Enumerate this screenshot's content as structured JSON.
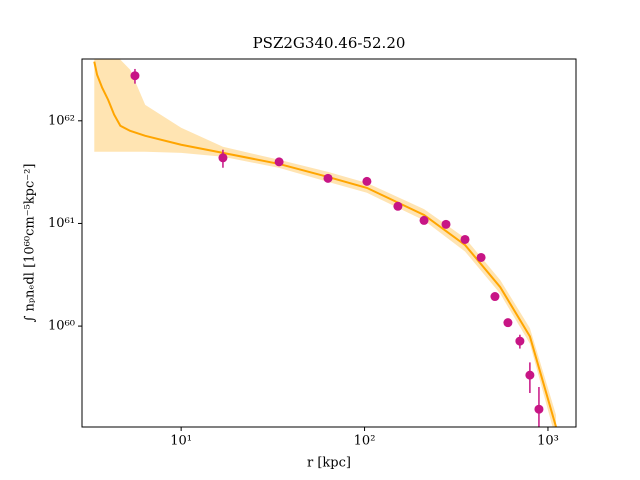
{
  "chart_data": {
    "type": "scatter",
    "title": "PSZ2G340.46-52.20",
    "x_label": "r [kpc]",
    "y_label": "∫ nₚnₑdl [10⁶⁰cm⁻⁵kpc⁻²]",
    "x_log": true,
    "y_log": true,
    "xlim": [
      2.88,
      1422
    ],
    "ylim": [
      1.04e+59,
      4e+62
    ],
    "xticks": [
      {
        "value": 10,
        "label": "10¹"
      },
      {
        "value": 100,
        "label": "10²"
      },
      {
        "value": 1000,
        "label": "10³"
      }
    ],
    "yticks": [
      {
        "value": 1e+60,
        "label": "10⁶⁰"
      },
      {
        "value": 1e+61,
        "label": "10⁶¹"
      },
      {
        "value": 1e+62,
        "label": "10⁶²"
      }
    ],
    "series": [
      {
        "color": "#c71585",
        "x": [
          5.6,
          16.9,
          34.2,
          63.2,
          103,
          152,
          211,
          278,
          353,
          432,
          514,
          605,
          703,
          797,
          893
        ],
        "values": [
          2.75e+62,
          4.36e+61,
          3.98e+61,
          2.75e+61,
          2.57e+61,
          1.47e+61,
          1.07e+61,
          9.8e+60,
          6.98e+60,
          4.66e+60,
          1.94e+60,
          1.08e+60,
          7.14e+59,
          3.33e+59,
          1.55e+59
        ],
        "errors": [
          4.5e+61,
          8.7e+60,
          1.5e+60,
          1e+60,
          9e+59,
          5e+59,
          4e+59,
          3e+59,
          2.5e+59,
          1.8e+59,
          8e+58,
          5e+58,
          1.1e+59,
          1.1e+59,
          1e+59
        ]
      },
      {
        "color": "#ffa500",
        "x": [
          3.36,
          3.48,
          3.71,
          4.0,
          4.31,
          4.66,
          5.27,
          6.37,
          10,
          16.9,
          34.2,
          63.2,
          103,
          211,
          353,
          549,
          797,
          1107
        ],
        "values": [
          3.77e+62,
          2.81e+62,
          2.1e+62,
          1.6e+62,
          1.15e+62,
          8.94e+61,
          7.98e+61,
          7.14e+61,
          5.84e+61,
          4.87e+61,
          3.8e+61,
          2.84e+61,
          2.22e+61,
          1.21e+61,
          6.17e+60,
          2.4e+60,
          7.94e+59,
          1.04e+59
        ],
        "upper": [
          4.03e+62,
          4.03e+62,
          4.03e+62,
          4.03e+62,
          4.03e+62,
          3.94e+62,
          3.15e+62,
          1.43e+62,
          8.55e+61,
          5.58e+61,
          4.17e+61,
          3.18e+61,
          2.48e+61,
          1.38e+61,
          7.22e+60,
          2.81e+60,
          9.56e+59,
          1.36e+59
        ],
        "lower": [
          4.99e+61,
          4.99e+61,
          4.99e+61,
          4.99e+61,
          4.99e+61,
          4.99e+61,
          4.99e+61,
          4.99e+61,
          4.87e+61,
          4.46e+61,
          3.48e+61,
          2.54e+61,
          1.99e+61,
          1.07e+61,
          5.33e+60,
          2.07e+60,
          6.75e+59,
          7.8e+58
        ]
      }
    ]
  }
}
